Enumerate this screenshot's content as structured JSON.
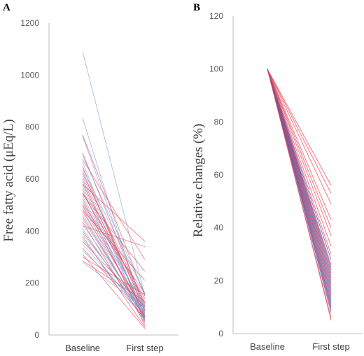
{
  "chart_data": [
    {
      "type": "line",
      "panel_label": "A",
      "ylabel": "Free fatty acid (μEq/L)",
      "categories": [
        "Baseline",
        "First step"
      ],
      "ylim": [
        0,
        1200
      ],
      "yticks": [
        "0",
        "200",
        "400",
        "600",
        "800",
        "1000",
        "1200"
      ],
      "grid": false,
      "colors": {
        "red": "#e8495a",
        "blue": "#7f9fd6"
      },
      "series": [
        {
          "color": "blue",
          "values": [
            1090,
            150
          ]
        },
        {
          "color": "blue",
          "values": [
            835,
            65
          ]
        },
        {
          "color": "red",
          "values": [
            770,
            150
          ]
        },
        {
          "color": "blue",
          "values": [
            765,
            95
          ]
        },
        {
          "color": "red",
          "values": [
            700,
            110
          ]
        },
        {
          "color": "blue",
          "values": [
            690,
            160
          ]
        },
        {
          "color": "red",
          "values": [
            675,
            290
          ]
        },
        {
          "color": "blue",
          "values": [
            665,
            60
          ]
        },
        {
          "color": "red",
          "values": [
            650,
            55
          ]
        },
        {
          "color": "blue",
          "values": [
            640,
            160
          ]
        },
        {
          "color": "red",
          "values": [
            630,
            95
          ]
        },
        {
          "color": "red",
          "values": [
            620,
            125
          ]
        },
        {
          "color": "blue",
          "values": [
            610,
            105
          ]
        },
        {
          "color": "red",
          "values": [
            600,
            75
          ]
        },
        {
          "color": "blue",
          "values": [
            590,
            55
          ]
        },
        {
          "color": "red",
          "values": [
            580,
            120
          ]
        },
        {
          "color": "blue",
          "values": [
            570,
            90
          ]
        },
        {
          "color": "red",
          "values": [
            560,
            35
          ]
        },
        {
          "color": "blue",
          "values": [
            550,
            95
          ]
        },
        {
          "color": "red",
          "values": [
            545,
            140
          ]
        },
        {
          "color": "blue",
          "values": [
            535,
            80
          ]
        },
        {
          "color": "red",
          "values": [
            525,
            55
          ]
        },
        {
          "color": "blue",
          "values": [
            515,
            70
          ]
        },
        {
          "color": "red",
          "values": [
            505,
            160
          ]
        },
        {
          "color": "blue",
          "values": [
            500,
            115
          ]
        },
        {
          "color": "red",
          "values": [
            495,
            85
          ]
        },
        {
          "color": "blue",
          "values": [
            485,
            50
          ]
        },
        {
          "color": "red",
          "values": [
            475,
            95
          ]
        },
        {
          "color": "blue",
          "values": [
            465,
            65
          ]
        },
        {
          "color": "red",
          "values": [
            455,
            70
          ]
        },
        {
          "color": "blue",
          "values": [
            445,
            75
          ]
        },
        {
          "color": "red",
          "values": [
            435,
            45
          ]
        },
        {
          "color": "blue",
          "values": [
            425,
            85
          ]
        },
        {
          "color": "red",
          "values": [
            420,
            340
          ]
        },
        {
          "color": "blue",
          "values": [
            410,
            55
          ]
        },
        {
          "color": "red",
          "values": [
            400,
            70
          ]
        },
        {
          "color": "blue",
          "values": [
            390,
            90
          ]
        },
        {
          "color": "red",
          "values": [
            380,
            30
          ]
        },
        {
          "color": "blue",
          "values": [
            370,
            60
          ]
        },
        {
          "color": "red",
          "values": [
            360,
            110
          ]
        },
        {
          "color": "blue",
          "values": [
            350,
            80
          ]
        },
        {
          "color": "red",
          "values": [
            335,
            65
          ]
        },
        {
          "color": "blue",
          "values": [
            325,
            100
          ]
        },
        {
          "color": "red",
          "values": [
            310,
            25
          ]
        },
        {
          "color": "red",
          "values": [
            300,
            155
          ]
        },
        {
          "color": "red",
          "values": [
            285,
            130
          ]
        },
        {
          "color": "blue",
          "values": [
            280,
            105
          ]
        },
        {
          "color": "red",
          "values": [
            580,
            360
          ]
        },
        {
          "color": "red",
          "values": [
            540,
            245
          ]
        },
        {
          "color": "red",
          "values": [
            480,
            210
          ]
        }
      ]
    },
    {
      "type": "line",
      "panel_label": "B",
      "ylabel": "Relative changes (%)",
      "categories": [
        "Baseline",
        "First step"
      ],
      "ylim": [
        0,
        120
      ],
      "yticks": [
        "0",
        "20",
        "40",
        "60",
        "80",
        "100",
        "120"
      ],
      "grid": false,
      "colors": {
        "red": "#e8495a",
        "blue": "#3b5bb5"
      },
      "series": [
        {
          "color": "red",
          "values": [
            100,
            56
          ]
        },
        {
          "color": "red",
          "values": [
            100,
            53
          ]
        },
        {
          "color": "red",
          "values": [
            100,
            49
          ]
        },
        {
          "color": "red",
          "values": [
            100,
            43
          ]
        },
        {
          "color": "red",
          "values": [
            100,
            40
          ]
        },
        {
          "color": "red",
          "values": [
            100,
            37
          ]
        },
        {
          "color": "red",
          "values": [
            100,
            33
          ]
        },
        {
          "color": "red",
          "values": [
            100,
            30
          ]
        },
        {
          "color": "blue",
          "values": [
            100,
            28
          ]
        },
        {
          "color": "red",
          "values": [
            100,
            26
          ]
        },
        {
          "color": "blue",
          "values": [
            100,
            25
          ]
        },
        {
          "color": "red",
          "values": [
            100,
            24
          ]
        },
        {
          "color": "blue",
          "values": [
            100,
            23
          ]
        },
        {
          "color": "red",
          "values": [
            100,
            22
          ]
        },
        {
          "color": "blue",
          "values": [
            100,
            21
          ]
        },
        {
          "color": "red",
          "values": [
            100,
            20
          ]
        },
        {
          "color": "blue",
          "values": [
            100,
            19
          ]
        },
        {
          "color": "red",
          "values": [
            100,
            18
          ]
        },
        {
          "color": "blue",
          "values": [
            100,
            17
          ]
        },
        {
          "color": "red",
          "values": [
            100,
            16
          ]
        },
        {
          "color": "blue",
          "values": [
            100,
            15
          ]
        },
        {
          "color": "red",
          "values": [
            100,
            14
          ]
        },
        {
          "color": "blue",
          "values": [
            100,
            13
          ]
        },
        {
          "color": "red",
          "values": [
            100,
            12
          ]
        },
        {
          "color": "blue",
          "values": [
            100,
            11
          ]
        },
        {
          "color": "blue",
          "values": [
            100,
            10
          ]
        },
        {
          "color": "red",
          "values": [
            100,
            9
          ]
        },
        {
          "color": "blue",
          "values": [
            100,
            8
          ]
        },
        {
          "color": "red",
          "values": [
            100,
            6
          ]
        },
        {
          "color": "red",
          "values": [
            100,
            5
          ]
        }
      ]
    }
  ]
}
